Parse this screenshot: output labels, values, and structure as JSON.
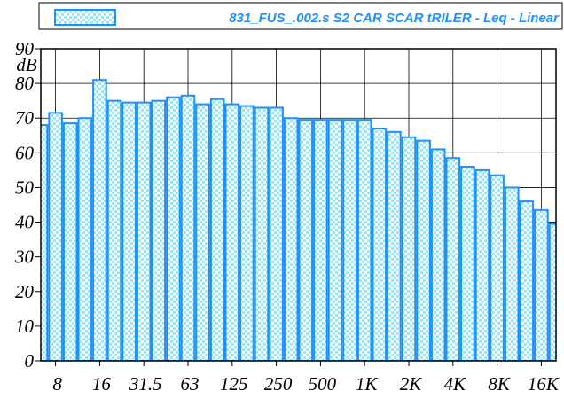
{
  "chart_data": {
    "type": "bar",
    "legend": "831_FUS_.002.s S2 CAR SCAR tRILER - Leq - Linear",
    "y_label": "dB",
    "categories": [
      null,
      "8",
      null,
      null,
      "16",
      null,
      null,
      "31.5",
      null,
      null,
      "63",
      null,
      null,
      "125",
      null,
      null,
      "250",
      null,
      null,
      "500",
      null,
      null,
      "1K",
      null,
      null,
      "2K",
      null,
      null,
      "4K",
      null,
      null,
      "8K",
      null,
      null,
      "16K",
      null
    ],
    "values": [
      68,
      71.5,
      68.5,
      70,
      81,
      75,
      74.5,
      74.5,
      75,
      76,
      76.5,
      74,
      75.5,
      74,
      73.5,
      73,
      73,
      70,
      69.5,
      69.5,
      69.5,
      69.5,
      69.5,
      67,
      66,
      64.5,
      63.5,
      61,
      58.5,
      56,
      55,
      53.5,
      50,
      46,
      43.5,
      39.5
    ],
    "color": "#1e90ff",
    "fill": "#9ee7f2",
    "ylim": [
      0,
      90
    ],
    "yticks": [
      0,
      10,
      20,
      30,
      40,
      50,
      60,
      70,
      80,
      90
    ],
    "grid": true
  }
}
